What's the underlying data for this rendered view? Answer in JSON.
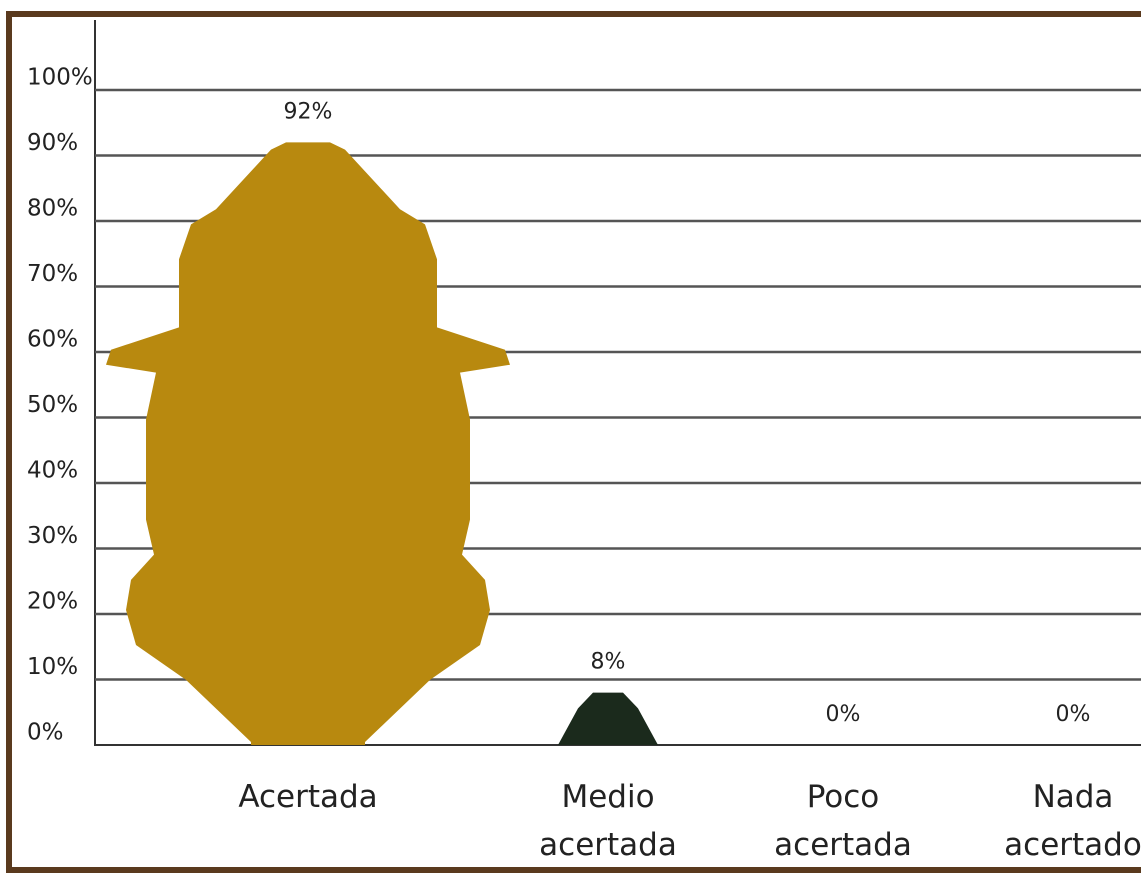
{
  "chart_data": {
    "type": "pictograph",
    "categories": [
      "Acertada",
      "Medio\nacertada",
      "Poco\nacertada",
      "Nada\nacertado"
    ],
    "values": [
      92,
      8,
      0,
      0
    ],
    "value_labels": [
      "92%",
      "8%",
      "0%",
      "0%"
    ],
    "colors": [
      "#b8890f",
      "#1b2a1c",
      "#1b2a1c",
      "#1b2a1c"
    ],
    "ylim": [
      0,
      100
    ],
    "yticks": [
      {
        "value": 0,
        "label": "0%"
      },
      {
        "value": 10,
        "label": "10%"
      },
      {
        "value": 20,
        "label": "20%"
      },
      {
        "value": 30,
        "label": "30%"
      },
      {
        "value": 40,
        "label": "40%"
      },
      {
        "value": 50,
        "label": "50%"
      },
      {
        "value": 60,
        "label": "60%"
      },
      {
        "value": 70,
        "label": "70%"
      },
      {
        "value": 80,
        "label": "80%"
      },
      {
        "value": 90,
        "label": "90%"
      },
      {
        "value": 100,
        "label": "100%"
      }
    ],
    "grid": true
  }
}
